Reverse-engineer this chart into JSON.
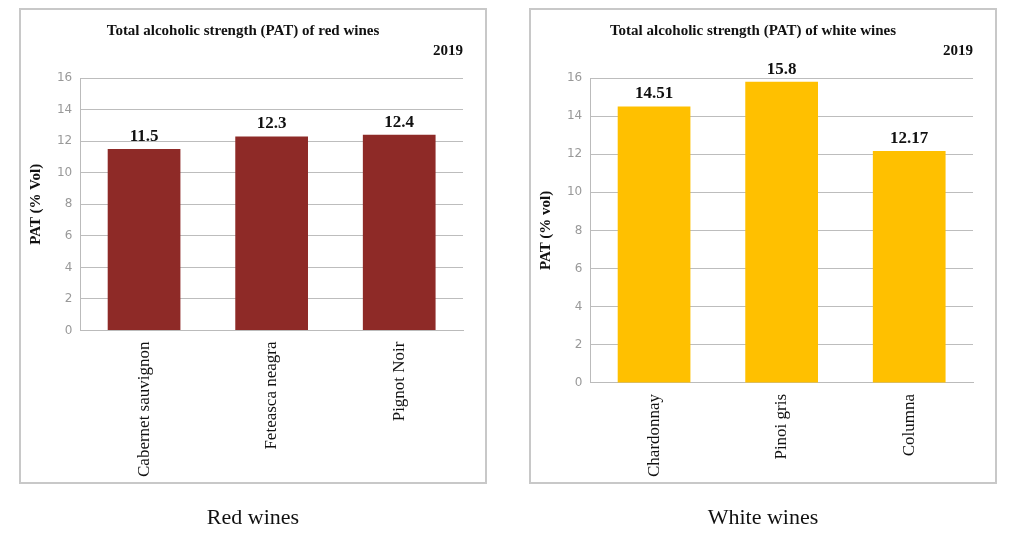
{
  "chart_data": [
    {
      "type": "bar",
      "title": "Total alcoholic strength (PAT) of red wines",
      "subtitle": "2019",
      "ylabel": "PAT (% Vol)",
      "categories": [
        "Cabernet sauvignon",
        "Feteasca neagra",
        "Pignot Noir"
      ],
      "values": [
        11.5,
        12.3,
        12.4
      ],
      "color": "#8e2a27",
      "ylim": [
        0,
        16
      ],
      "yticks": [
        0,
        2,
        4,
        6,
        8,
        10,
        12,
        14,
        16
      ],
      "grid": "y",
      "data_labels": true,
      "legend": false,
      "annotations": [
        "Red wines"
      ]
    },
    {
      "type": "bar",
      "title": "Total alcoholic strength (PAT) of white wines",
      "subtitle": "2019",
      "ylabel": "PAT (% vol)",
      "categories": [
        "Chardonnay",
        "Pinoi gris",
        "Columna"
      ],
      "values": [
        14.51,
        15.8,
        12.17
      ],
      "color": "#ffc000",
      "ylim": [
        0,
        16
      ],
      "yticks": [
        0,
        2,
        4,
        6,
        8,
        10,
        12,
        14,
        16
      ],
      "grid": "y",
      "data_labels": true,
      "legend": false,
      "annotations": [
        "White wines"
      ]
    }
  ]
}
